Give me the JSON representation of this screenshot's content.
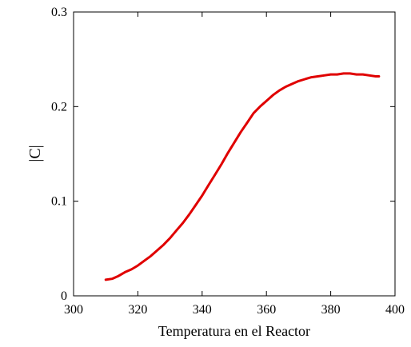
{
  "chart_data": {
    "type": "line",
    "title": "",
    "xlabel": "Temperatura en el Reactor",
    "ylabel": "|C|",
    "xlim": [
      300,
      400
    ],
    "ylim": [
      0,
      0.3
    ],
    "xticks": [
      300,
      320,
      340,
      360,
      380,
      400
    ],
    "xtick_labels": [
      "300",
      "320",
      "340",
      "360",
      "380",
      "400"
    ],
    "yticks": [
      0,
      0.1,
      0.2,
      0.3
    ],
    "ytick_labels": [
      "0",
      "0.1",
      "0.2",
      "0.3"
    ],
    "grid": false,
    "series": [
      {
        "color": "#e00000",
        "x": [
          310,
          312,
          314,
          316,
          318,
          320,
          322,
          324,
          326,
          328,
          330,
          332,
          334,
          336,
          338,
          340,
          342,
          344,
          346,
          348,
          350,
          352,
          354,
          356,
          358,
          360,
          362,
          364,
          366,
          368,
          370,
          372,
          374,
          376,
          378,
          380,
          382,
          384,
          386,
          388,
          390,
          392,
          394,
          395
        ],
        "y": [
          0.017,
          0.018,
          0.021,
          0.025,
          0.028,
          0.032,
          0.037,
          0.042,
          0.048,
          0.054,
          0.061,
          0.069,
          0.077,
          0.086,
          0.096,
          0.106,
          0.117,
          0.128,
          0.139,
          0.151,
          0.162,
          0.173,
          0.183,
          0.193,
          0.2,
          0.206,
          0.212,
          0.217,
          0.221,
          0.224,
          0.227,
          0.229,
          0.231,
          0.232,
          0.233,
          0.234,
          0.234,
          0.235,
          0.235,
          0.234,
          0.234,
          0.233,
          0.232,
          0.232
        ]
      }
    ]
  }
}
